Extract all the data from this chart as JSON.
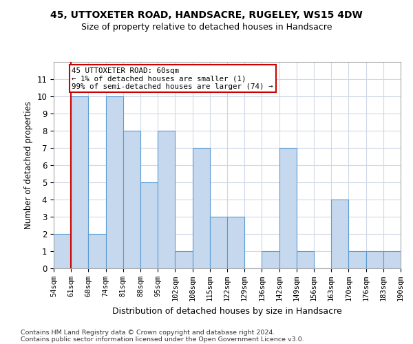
{
  "title": "45, UTTOXETER ROAD, HANDSACRE, RUGELEY, WS15 4DW",
  "subtitle": "Size of property relative to detached houses in Handsacre",
  "xlabel": "Distribution of detached houses by size in Handsacre",
  "ylabel": "Number of detached properties",
  "bar_values": [
    2,
    10,
    2,
    10,
    8,
    5,
    8,
    1,
    7,
    3,
    3,
    0,
    1,
    7,
    1,
    0,
    4,
    1,
    1,
    1
  ],
  "bin_labels": [
    "54sqm",
    "61sqm",
    "68sqm",
    "74sqm",
    "81sqm",
    "88sqm",
    "95sqm",
    "102sqm",
    "108sqm",
    "115sqm",
    "122sqm",
    "129sqm",
    "136sqm",
    "142sqm",
    "149sqm",
    "156sqm",
    "163sqm",
    "170sqm",
    "176sqm",
    "183sqm",
    "190sqm"
  ],
  "bar_color": "#c5d8ed",
  "bar_edge_color": "#5b9bd5",
  "annotation_line1": "45 UTTOXETER ROAD: 60sqm",
  "annotation_line2": "← 1% of detached houses are smaller (1)",
  "annotation_line3": "99% of semi-detached houses are larger (74) →",
  "annotation_box_color": "#ffffff",
  "annotation_border_color": "#cc0000",
  "ylim": [
    0,
    12
  ],
  "yticks": [
    0,
    1,
    2,
    3,
    4,
    5,
    6,
    7,
    8,
    9,
    10,
    11
  ],
  "footnote_line1": "Contains HM Land Registry data © Crown copyright and database right 2024.",
  "footnote_line2": "Contains public sector information licensed under the Open Government Licence v3.0.",
  "highlight_line_color": "#cc0000",
  "background_color": "#ffffff",
  "grid_color": "#d0d8e8"
}
